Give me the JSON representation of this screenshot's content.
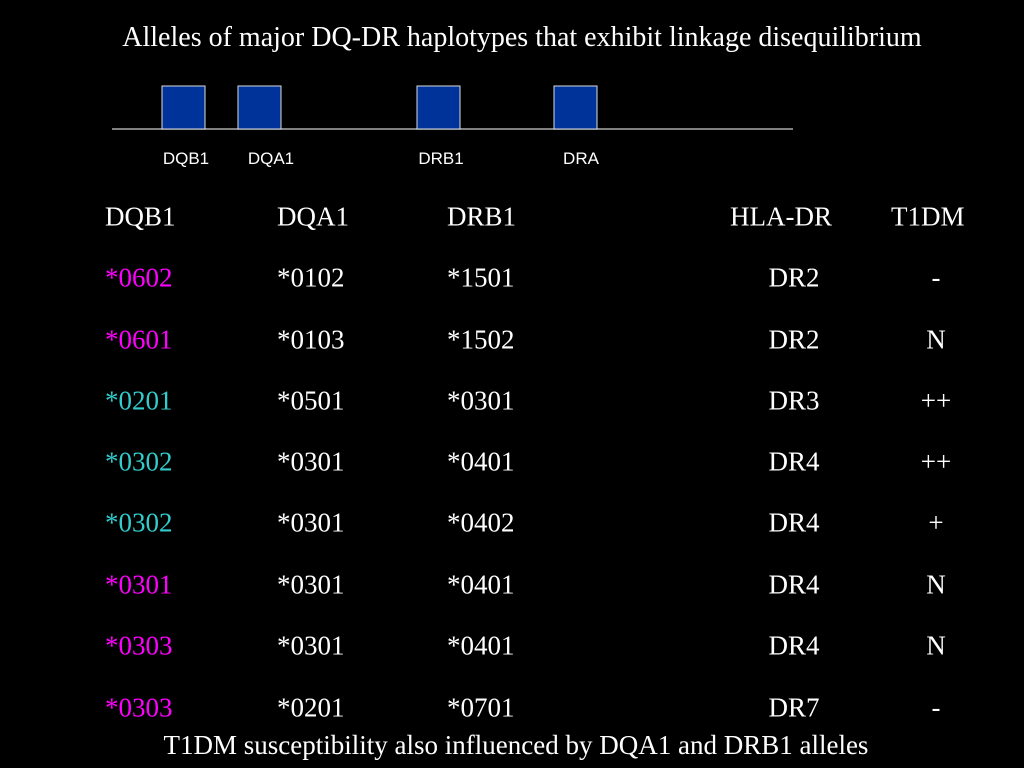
{
  "header": {
    "title": "Alleles of major DQ-DR haplotypes that exhibit linkage disequilibrium"
  },
  "gene_map": {
    "labels": [
      "DQB1",
      "DQA1",
      "DRB1",
      "DRA"
    ]
  },
  "table": {
    "columns": [
      "DQB1",
      "DQA1",
      "DRB1",
      "HLA-DR",
      "T1DM"
    ],
    "rows": [
      [
        "*0602",
        "*0102",
        "*1501",
        "DR2",
        "-"
      ],
      [
        "*0601",
        "*0103",
        "*1502",
        "DR2",
        "N"
      ],
      [
        "*0201",
        "*0501",
        "*0301",
        "DR3",
        "++"
      ],
      [
        "*0302",
        "*0301",
        "*0401",
        "DR4",
        "++"
      ],
      [
        "*0302",
        "*0301",
        "*0402",
        "DR4",
        "+"
      ],
      [
        "*0301",
        "*0301",
        "*0401",
        "DR4",
        "N"
      ],
      [
        "*0303",
        "*0301",
        "*0401",
        "DR4",
        "N"
      ],
      [
        "*0303",
        "*0201",
        "*0701",
        "DR7",
        "-"
      ]
    ],
    "dqb1_colors": [
      "#ff00ff",
      "#ff00ff",
      "#33cccc",
      "#33cccc",
      "#33cccc",
      "#ff00ff",
      "#ff00ff",
      "#ff00ff"
    ]
  },
  "footer": {
    "text": "T1DM susceptibility also influenced by DQA1 and DRB1 alleles"
  }
}
